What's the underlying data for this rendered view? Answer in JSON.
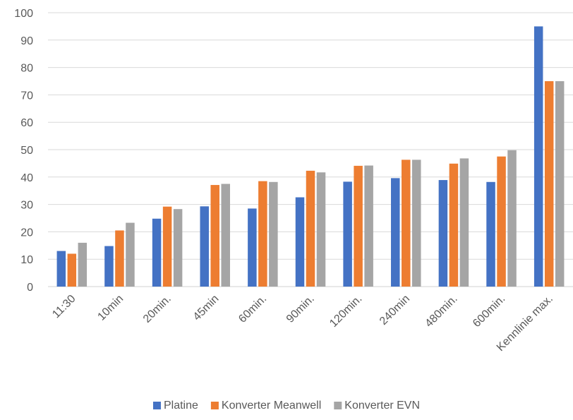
{
  "chart_data": {
    "type": "bar",
    "categories": [
      "11:30",
      "10min",
      "20min.",
      "45min",
      "60min.",
      "90min.",
      "120min.",
      "240min",
      "480min.",
      "600min.",
      "Kennlinie max."
    ],
    "series": [
      {
        "name": "Platine",
        "color": "#4472C4",
        "values": [
          13,
          14.8,
          24.8,
          29.3,
          28.5,
          32.6,
          38.3,
          39.6,
          38.9,
          38.2,
          95
        ]
      },
      {
        "name": "Konverter Meanwell",
        "color": "#ED7D31",
        "values": [
          12,
          20.5,
          29.2,
          37.1,
          38.5,
          42.3,
          44.1,
          46.3,
          44.9,
          47.5,
          75
        ]
      },
      {
        "name": "Konverter EVN",
        "color": "#A5A5A5",
        "values": [
          16,
          23.3,
          28.3,
          37.5,
          38.2,
          41.7,
          44.2,
          46.3,
          46.8,
          49.8,
          75
        ]
      }
    ],
    "y_ticks": [
      "0",
      "10",
      "20",
      "30",
      "40",
      "50",
      "60",
      "70",
      "80",
      "90",
      "100"
    ],
    "ylim": [
      0,
      100
    ],
    "grid": true,
    "legend_position": "bottom",
    "title": "",
    "xlabel": "",
    "ylabel": ""
  }
}
